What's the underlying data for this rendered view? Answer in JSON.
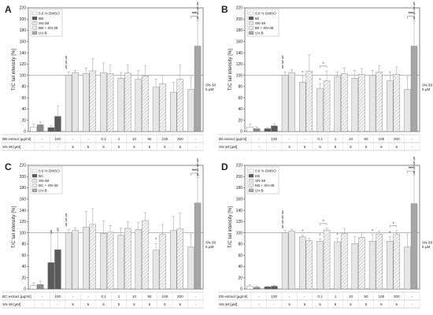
{
  "figure": {
    "colors": {
      "dmso": "#ffffff",
      "extract": "#5a5a5a",
      "sn38": "#e6e6e6",
      "combo": "#f6f6f6",
      "uvb": "#a6a6a6",
      "ctrl_uvb": "#8c8c8c",
      "error": "#9a9a9a",
      "axis": "#333333"
    },
    "combo_pattern": "diagonal-hatch"
  },
  "chart_data": [
    {
      "type": "bar",
      "panel_label": "A",
      "ylabel": "T/C tail intensity [%]",
      "ylim": [
        0,
        220
      ],
      "yticks": [
        0,
        20,
        40,
        60,
        80,
        100,
        120,
        140,
        160,
        180,
        200,
        220
      ],
      "reference_line": 100,
      "legend": [
        "0.6 % DMSO",
        "BB",
        "SN-38",
        "BB + SN-38",
        "UV-B"
      ],
      "legend_position": "top-left",
      "extract_row_label": "BB extract [µg/ml]",
      "sn38_row_label": "SN-38 [µM]",
      "extract_row": [
        "-",
        "100",
        "-",
        "-",
        "0.1",
        "1",
        "10",
        "50",
        "100",
        "200",
        "-"
      ],
      "sn38_row": [
        "-",
        "-",
        "5",
        "5",
        "5",
        "5",
        "5",
        "5",
        "5",
        "5",
        "-"
      ],
      "uvb_label": [
        "SN-38",
        "5 µM"
      ],
      "groups": [
        {
          "bars": [
            {
              "t": "dmso",
              "v": 8,
              "e": 5
            },
            {
              "t": "ctrl_uvb",
              "v": 12,
              "e": 5
            }
          ]
        },
        {
          "bars": [
            {
              "t": "extract",
              "v": 7,
              "e": 3
            },
            {
              "t": "extract",
              "v": 27,
              "e": 18
            }
          ]
        },
        {
          "bars": [
            {
              "t": "sn38",
              "v": 100,
              "e": 6
            },
            {
              "t": "sn38",
              "v": 105,
              "e": 4
            }
          ],
          "marks": [
            "§",
            "§",
            "§"
          ]
        },
        {
          "bars": [
            {
              "t": "sn38",
              "v": 103,
              "e": 10
            },
            {
              "t": "combo",
              "v": 108,
              "e": 22
            }
          ]
        },
        {
          "bars": [
            {
              "t": "sn38",
              "v": 105,
              "e": 17
            },
            {
              "t": "combo",
              "v": 103,
              "e": 15
            }
          ]
        },
        {
          "bars": [
            {
              "t": "sn38",
              "v": 95,
              "e": 10
            },
            {
              "t": "combo",
              "v": 104,
              "e": 14
            }
          ]
        },
        {
          "bars": [
            {
              "t": "sn38",
              "v": 93,
              "e": 16
            },
            {
              "t": "combo",
              "v": 99,
              "e": 18
            }
          ]
        },
        {
          "bars": [
            {
              "t": "sn38",
              "v": 79,
              "e": 14
            },
            {
              "t": "combo",
              "v": 85,
              "e": 15
            }
          ]
        },
        {
          "bars": [
            {
              "t": "sn38",
              "v": 70,
              "e": 18
            },
            {
              "t": "combo",
              "v": 93,
              "e": 25
            }
          ]
        },
        {
          "bars": [
            {
              "t": "sn38",
              "v": 75,
              "e": 22
            },
            {
              "t": "uvb",
              "v": 152,
              "e": 45
            }
          ],
          "marks": [
            "§",
            "§",
            "§",
            "§"
          ],
          "top": "***"
        }
      ]
    },
    {
      "type": "bar",
      "panel_label": "B",
      "ylabel": "T/C tail intensity [%]",
      "ylim": [
        0,
        220
      ],
      "yticks": [
        0,
        20,
        40,
        60,
        80,
        100,
        120,
        140,
        160,
        180,
        200,
        220
      ],
      "reference_line": 100,
      "legend": [
        "0.6 % DMSO",
        "Bil",
        "SN-38",
        "Bil + SN-38",
        "UV-B"
      ],
      "legend_position": "top-left",
      "extract_row_label": "Bil extract [µg/ml]",
      "sn38_row_label": "SN-38 [µM]",
      "extract_row": [
        "-",
        "100",
        "-",
        "-",
        "0.1",
        "1",
        "10",
        "50",
        "100",
        "200",
        "-"
      ],
      "sn38_row": [
        "-",
        "-",
        "5",
        "5",
        "5",
        "5",
        "5",
        "5",
        "5",
        "5",
        "-"
      ],
      "uvb_label": [
        "SN-38",
        "5 µM"
      ],
      "groups": [
        {
          "bars": [
            {
              "t": "dmso",
              "v": 8,
              "e": 5
            },
            {
              "t": "ctrl_uvb",
              "v": 5,
              "e": 3
            }
          ]
        },
        {
          "bars": [
            {
              "t": "extract",
              "v": 5,
              "e": 2
            },
            {
              "t": "extract",
              "v": 10,
              "e": 4
            }
          ]
        },
        {
          "bars": [
            {
              "t": "sn38",
              "v": 100,
              "e": 6
            },
            {
              "t": "sn38",
              "v": 105,
              "e": 5
            }
          ],
          "marks": [
            "§",
            "§",
            "§"
          ]
        },
        {
          "bars": [
            {
              "t": "sn38",
              "v": 88,
              "e": 10
            },
            {
              "t": "combo",
              "v": 107,
              "e": 30
            }
          ],
          "star": 0
        },
        {
          "bars": [
            {
              "t": "sn38",
              "v": 77,
              "e": 8
            },
            {
              "t": "combo",
              "v": 90,
              "e": 18
            }
          ],
          "star": 0,
          "bracket": true
        },
        {
          "bars": [
            {
              "t": "sn38",
              "v": 98,
              "e": 8
            },
            {
              "t": "combo",
              "v": 103,
              "e": 10
            }
          ]
        },
        {
          "bars": [
            {
              "t": "sn38",
              "v": 95,
              "e": 14
            },
            {
              "t": "combo",
              "v": 102,
              "e": 10
            }
          ]
        },
        {
          "bars": [
            {
              "t": "sn38",
              "v": 100,
              "e": 9
            },
            {
              "t": "combo",
              "v": 106,
              "e": 11
            }
          ]
        },
        {
          "bars": [
            {
              "t": "sn38",
              "v": 90,
              "e": 16
            },
            {
              "t": "combo",
              "v": 102,
              "e": 13
            }
          ]
        },
        {
          "bars": [
            {
              "t": "sn38",
              "v": 75,
              "e": 22
            },
            {
              "t": "uvb",
              "v": 152,
              "e": 45
            }
          ],
          "marks": [
            "§",
            "§",
            "§",
            "§"
          ],
          "top": "***"
        }
      ]
    },
    {
      "type": "bar",
      "panel_label": "C",
      "ylabel": "T/C tail intensity [%]",
      "ylim": [
        0,
        220
      ],
      "yticks": [
        0,
        20,
        40,
        60,
        80,
        100,
        120,
        140,
        160,
        180,
        200,
        220
      ],
      "reference_line": 100,
      "legend": [
        "0.6 % DMSO",
        "BC",
        "SN-38",
        "BC + SN-38",
        "UV-B"
      ],
      "legend_position": "top-left",
      "extract_row_label": "BC extract [µg/ml]",
      "sn38_row_label": "SN-38 [µM]",
      "extract_row": [
        "-",
        "100",
        "-",
        "-",
        "0.1",
        "1",
        "10",
        "50",
        "100",
        "200",
        "-"
      ],
      "sn38_row": [
        "-",
        "-",
        "5",
        "5",
        "5",
        "5",
        "5",
        "5",
        "5",
        "5",
        "-"
      ],
      "uvb_label": [
        "SN-38",
        "5 µM"
      ],
      "groups": [
        {
          "bars": [
            {
              "t": "dmso",
              "v": 6,
              "e": 5
            },
            {
              "t": "ctrl_uvb",
              "v": 8,
              "e": 6
            }
          ]
        },
        {
          "bars": [
            {
              "t": "extract",
              "v": 47,
              "e": 50
            },
            {
              "t": "extract",
              "v": 70,
              "e": 30
            }
          ],
          "marks": [
            "§"
          ],
          "markPos": "both"
        },
        {
          "bars": [
            {
              "t": "sn38",
              "v": 100,
              "e": 6
            },
            {
              "t": "sn38",
              "v": 104,
              "e": 5
            }
          ],
          "marks": [
            "§",
            "§",
            "§"
          ]
        },
        {
          "bars": [
            {
              "t": "sn38",
              "v": 110,
              "e": 28
            },
            {
              "t": "combo",
              "v": 115,
              "e": 28
            }
          ]
        },
        {
          "bars": [
            {
              "t": "sn38",
              "v": 99,
              "e": 22
            },
            {
              "t": "combo",
              "v": 101,
              "e": 12
            }
          ]
        },
        {
          "bars": [
            {
              "t": "sn38",
              "v": 96,
              "e": 13
            },
            {
              "t": "combo",
              "v": 108,
              "e": 12
            }
          ]
        },
        {
          "bars": [
            {
              "t": "sn38",
              "v": 106,
              "e": 12
            },
            {
              "t": "combo",
              "v": 122,
              "e": 14
            }
          ]
        },
        {
          "bars": [
            {
              "t": "sn38",
              "v": 69,
              "e": 12
            },
            {
              "t": "combo",
              "v": 97,
              "e": 18
            }
          ],
          "star": 0
        },
        {
          "bars": [
            {
              "t": "sn38",
              "v": 104,
              "e": 25
            },
            {
              "t": "combo",
              "v": 107,
              "e": 28
            }
          ]
        },
        {
          "bars": [
            {
              "t": "sn38",
              "v": 75,
              "e": 22
            },
            {
              "t": "uvb",
              "v": 153,
              "e": 45
            }
          ],
          "marks": [
            "§",
            "§",
            "§",
            "§"
          ],
          "top": "***"
        }
      ]
    },
    {
      "type": "bar",
      "panel_label": "D",
      "ylabel": "T/C tail intensity [%]",
      "ylim": [
        0,
        220
      ],
      "yticks": [
        0,
        20,
        40,
        60,
        80,
        100,
        120,
        140,
        160,
        180,
        200,
        220
      ],
      "reference_line": 100,
      "legend": [
        "0.6 % DMSO",
        "EB",
        "SN-38",
        "EB + SN-38",
        "UV-B"
      ],
      "legend_position": "top-left",
      "extract_row_label": "EB extract [µg/ml]",
      "sn38_row_label": "SN-38 [µM]",
      "extract_row": [
        "-",
        "100",
        "-",
        "-",
        "0.1",
        "1",
        "10",
        "50",
        "100",
        "200",
        "-"
      ],
      "sn38_row": [
        "-",
        "-",
        "5",
        "5",
        "5",
        "5",
        "5",
        "5",
        "5",
        "5",
        "-"
      ],
      "uvb_label": [
        "SN-38",
        "5 µM"
      ],
      "groups": [
        {
          "bars": [
            {
              "t": "dmso",
              "v": 5,
              "e": 3
            },
            {
              "t": "ctrl_uvb",
              "v": 3,
              "e": 2
            }
          ]
        },
        {
          "bars": [
            {
              "t": "extract",
              "v": 4,
              "e": 1
            },
            {
              "t": "extract",
              "v": 5,
              "e": 2
            }
          ]
        },
        {
          "bars": [
            {
              "t": "sn38",
              "v": 100,
              "e": 4
            },
            {
              "t": "sn38",
              "v": 103,
              "e": 3
            }
          ],
          "marks": [
            "§",
            "§",
            "§",
            "§"
          ]
        },
        {
          "bars": [
            {
              "t": "sn38",
              "v": 93,
              "e": 3
            },
            {
              "t": "combo",
              "v": 86,
              "e": 4
            }
          ],
          "star": 0
        },
        {
          "bars": [
            {
              "t": "sn38",
              "v": 85,
              "e": 4
            },
            {
              "t": "combo",
              "v": 105,
              "e": 3
            }
          ],
          "star": 0,
          "bracket": true
        },
        {
          "bars": [
            {
              "t": "sn38",
              "v": 84,
              "e": 6
            },
            {
              "t": "combo",
              "v": 99,
              "e": 8
            }
          ],
          "star": 0
        },
        {
          "bars": [
            {
              "t": "sn38",
              "v": 81,
              "e": 12
            },
            {
              "t": "combo",
              "v": 92,
              "e": 8
            }
          ]
        },
        {
          "bars": [
            {
              "t": "sn38",
              "v": 85,
              "e": 12
            },
            {
              "t": "combo",
              "v": 98,
              "e": 5
            }
          ],
          "star": 0
        },
        {
          "bars": [
            {
              "t": "sn38",
              "v": 85,
              "e": 8
            },
            {
              "t": "combo",
              "v": 98,
              "e": 6
            }
          ],
          "star": 0,
          "bracket": true
        },
        {
          "bars": [
            {
              "t": "sn38",
              "v": 75,
              "e": 22
            },
            {
              "t": "uvb",
              "v": 152,
              "e": 50
            }
          ],
          "marks": [
            "§",
            "§",
            "§",
            "§"
          ],
          "top": "***"
        }
      ]
    }
  ]
}
